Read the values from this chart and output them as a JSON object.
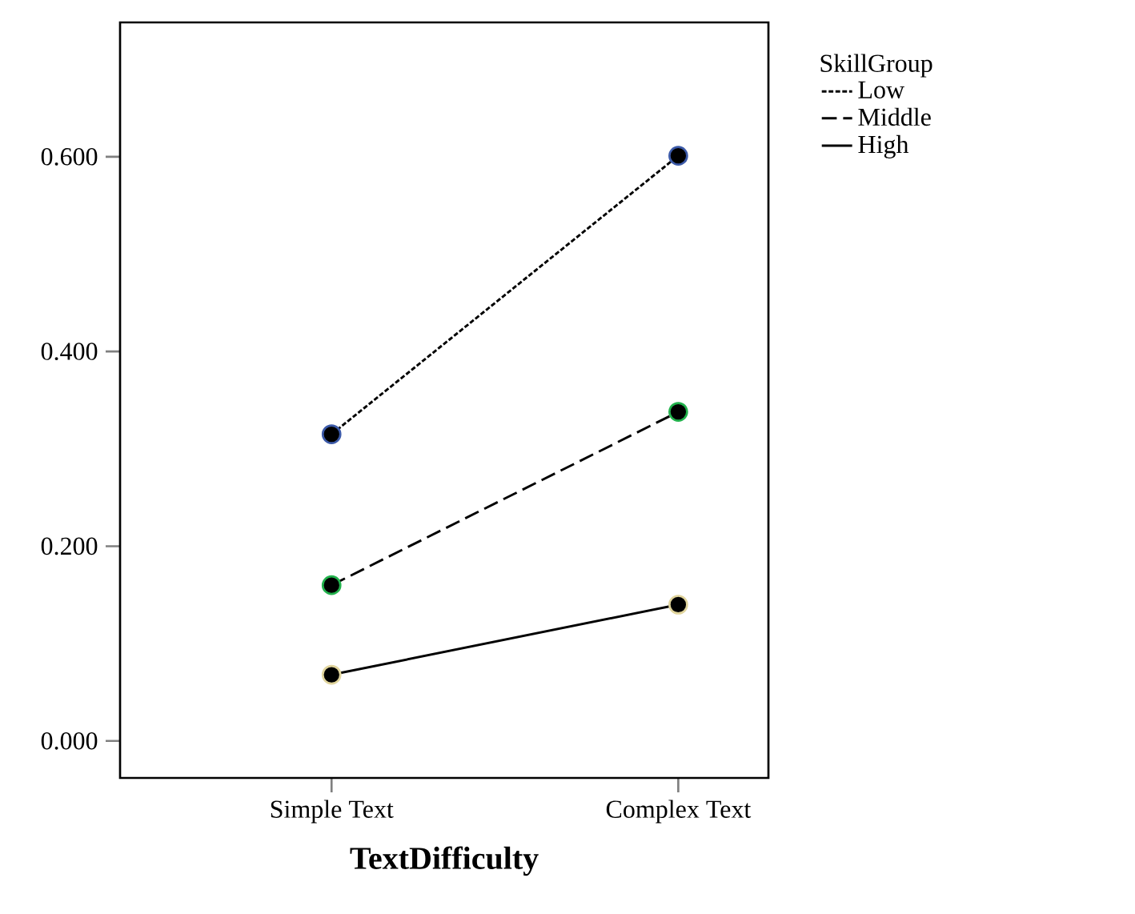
{
  "chart_data": {
    "type": "line",
    "xlabel": "TextDifficulty",
    "legend_title": "SkillGroup",
    "categories": [
      "Simple Text",
      "Complex Text"
    ],
    "series": [
      {
        "name": "Low",
        "color": "#3c5aa8",
        "line_style": "dotted",
        "values": [
          0.315,
          0.601
        ]
      },
      {
        "name": "Middle",
        "color": "#22b14c",
        "line_style": "dashed",
        "values": [
          0.16,
          0.338
        ]
      },
      {
        "name": "High",
        "color": "#e0d49c",
        "line_style": "solid",
        "values": [
          0.068,
          0.14
        ]
      }
    ],
    "ylim": [
      -0.038,
      0.738
    ],
    "yticks": [
      {
        "value": 0,
        "label": "0.000"
      },
      {
        "value": 0.2,
        "label": "0.200"
      },
      {
        "value": 0.4,
        "label": "0.400"
      },
      {
        "value": 0.6,
        "label": "0.600"
      }
    ],
    "marker": "circle",
    "grid": false,
    "legend": "top right"
  }
}
